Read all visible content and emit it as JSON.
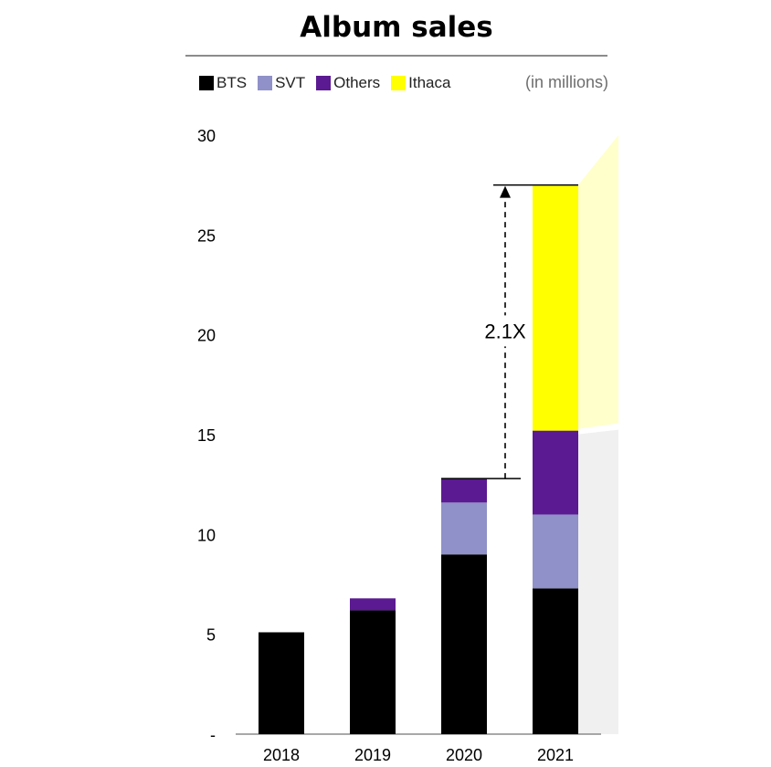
{
  "chart_data": {
    "type": "bar",
    "stacked": true,
    "title": "Album sales",
    "unit_note": "(in millions)",
    "categories": [
      "2018",
      "2019",
      "2020",
      "2021"
    ],
    "series": [
      {
        "name": "BTS",
        "color": "#000000",
        "values": [
          5.1,
          6.2,
          9.0,
          7.3
        ]
      },
      {
        "name": "SVT",
        "color": "#8f91c8",
        "values": [
          0,
          0,
          2.6,
          3.7
        ]
      },
      {
        "name": "Others",
        "color": "#5b1a91",
        "values": [
          0,
          0.6,
          1.2,
          4.2
        ]
      },
      {
        "name": "Ithaca",
        "color": "#ffff00",
        "values": [
          0,
          0,
          0,
          12.3
        ]
      }
    ],
    "y_ticks": [
      {
        "value": 0,
        "label": "-"
      },
      {
        "value": 5,
        "label": "5"
      },
      {
        "value": 10,
        "label": "10"
      },
      {
        "value": 15,
        "label": "15"
      },
      {
        "value": 20,
        "label": "20"
      },
      {
        "value": 25,
        "label": "25"
      },
      {
        "value": 30,
        "label": "30"
      }
    ],
    "ylim": [
      0,
      30
    ],
    "xlabel": "",
    "ylabel": "",
    "grid": false,
    "legend_position": "top-left",
    "annotation": {
      "label": "2.1X",
      "from_value": 12.8,
      "to_value": 27.5
    }
  }
}
